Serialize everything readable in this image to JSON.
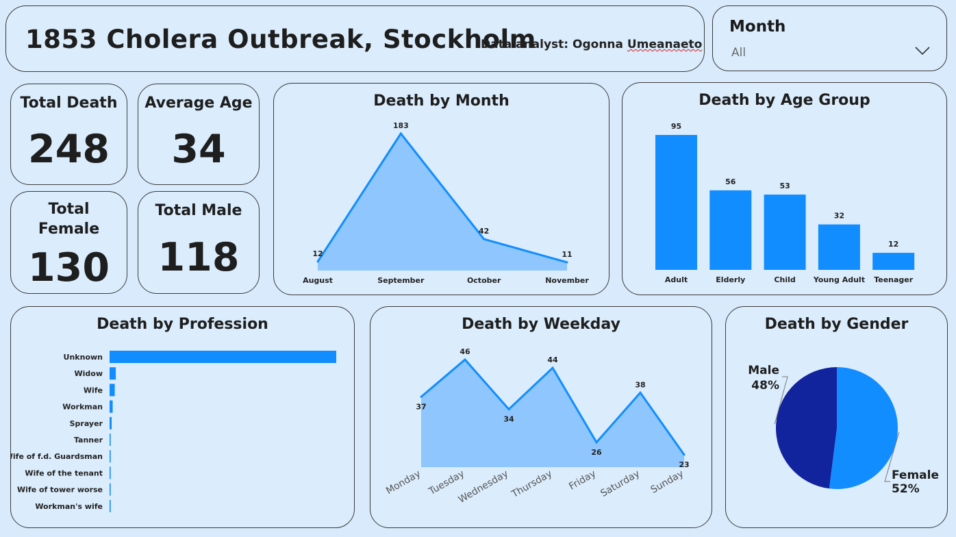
{
  "header": {
    "title": "1853 Cholera Outbreak, Stockholm",
    "analyst_prefix": "Data analyst: Ogonna ",
    "analyst_name": "Umeanaeto"
  },
  "filter": {
    "label": "Month",
    "value": "All",
    "icon": "chevron-down-icon"
  },
  "kpis": {
    "total_death": {
      "label": "Total Death",
      "value": "248"
    },
    "average_age": {
      "label": "Average Age",
      "value": "34"
    },
    "total_female": {
      "label": "Total Female",
      "value": "130"
    },
    "total_male": {
      "label": "Total Male",
      "value": "118"
    }
  },
  "colors": {
    "bar": "#118dff",
    "area_fill": "#8ec6fd",
    "line": "#118dff",
    "female": "#118dff",
    "male": "#12239e"
  },
  "chart_data": [
    {
      "id": "month",
      "type": "area",
      "title": "Death by Month",
      "categories": [
        "August",
        "September",
        "October",
        "November"
      ],
      "values": [
        12,
        183,
        42,
        11
      ]
    },
    {
      "id": "age",
      "type": "bar",
      "title": "Death by Age Group",
      "categories": [
        "Adult",
        "Elderly",
        "Child",
        "Young Adult",
        "Teenager"
      ],
      "values": [
        95,
        56,
        53,
        32,
        12
      ]
    },
    {
      "id": "profession",
      "type": "bar",
      "orientation": "horizontal",
      "title": "Death by Profession",
      "categories": [
        "Unknown",
        "Widow",
        "Wife",
        "Workman",
        "Sprayer",
        "Tanner",
        "Wife of f.d. Guardsman",
        "Wife of the tenant",
        "Wife of tower worse",
        "Workman's wife"
      ],
      "values": [
        219,
        6,
        5,
        3,
        2,
        1,
        1,
        1,
        1,
        1
      ]
    },
    {
      "id": "weekday",
      "type": "area",
      "title": "Death by Weekday",
      "categories": [
        "Monday",
        "Tuesday",
        "Wednesday",
        "Thursday",
        "Friday",
        "Saturday",
        "Sunday"
      ],
      "values": [
        37,
        46,
        34,
        44,
        26,
        38,
        23
      ]
    },
    {
      "id": "gender",
      "type": "pie",
      "title": "Death by Gender",
      "labels": [
        "Female",
        "Male"
      ],
      "values": [
        52,
        48
      ],
      "value_labels": [
        "52%",
        "48%"
      ]
    }
  ]
}
